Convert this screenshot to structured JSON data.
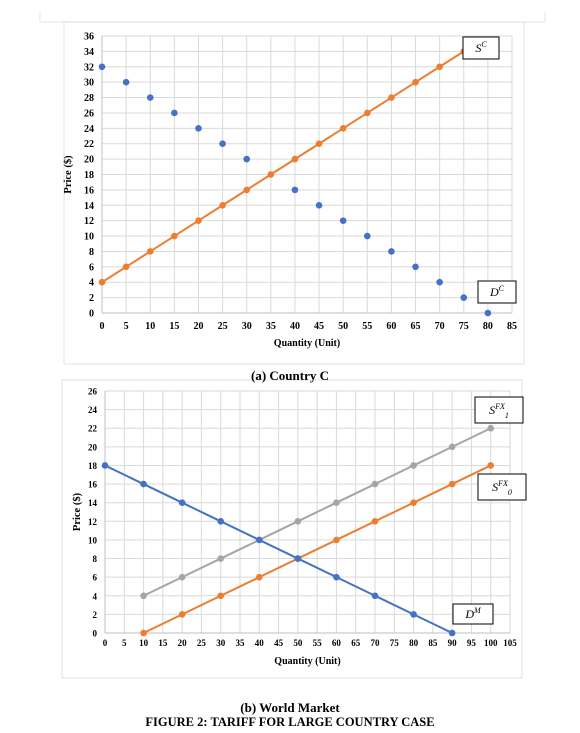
{
  "captions": {
    "panel_a": "(a) Country C",
    "panel_b": "(b) World Market",
    "figure": "FIGURE 2: TARIFF FOR LARGE COUNTRY CASE"
  },
  "colors": {
    "orange": "#ED7D31",
    "blue": "#4472C4",
    "gray": "#A5A5A5",
    "grid": "#D9D9D9"
  },
  "chart_data": [
    {
      "type": "line",
      "xlabel": "Quantity (Unit)",
      "ylabel": "Price ($)",
      "xlim": [
        0,
        85
      ],
      "ylim": [
        0,
        36
      ],
      "xticks": [
        0,
        5,
        10,
        15,
        20,
        25,
        30,
        35,
        40,
        45,
        50,
        55,
        60,
        65,
        70,
        75,
        80,
        85
      ],
      "yticks": [
        0,
        2,
        4,
        6,
        8,
        10,
        12,
        14,
        16,
        18,
        20,
        22,
        24,
        26,
        28,
        30,
        32,
        34,
        36
      ],
      "grid": true,
      "series": [
        {
          "name": "S",
          "sup": "C",
          "color": "#ED7D31",
          "style": "line-markers",
          "label_position": "top-right",
          "x": [
            0,
            5,
            10,
            15,
            20,
            25,
            30,
            35,
            40,
            45,
            50,
            55,
            60,
            65,
            70,
            75
          ],
          "y": [
            4,
            6,
            8,
            10,
            12,
            14,
            16,
            18,
            20,
            22,
            24,
            26,
            28,
            30,
            32,
            34
          ]
        },
        {
          "name": "D",
          "sup": "C",
          "color": "#4472C4",
          "style": "markers",
          "label_position": "bottom-right",
          "x": [
            0,
            5,
            10,
            15,
            20,
            25,
            30,
            40,
            45,
            50,
            55,
            60,
            65,
            70,
            75,
            80
          ],
          "y": [
            32,
            30,
            28,
            26,
            24,
            22,
            20,
            16,
            14,
            12,
            10,
            8,
            6,
            4,
            2,
            0
          ]
        }
      ]
    },
    {
      "type": "line",
      "xlabel": "Quantity (Unit)",
      "ylabel": "Price ($)",
      "xlim": [
        0,
        105
      ],
      "ylim": [
        0,
        26
      ],
      "xticks": [
        0,
        5,
        10,
        15,
        20,
        25,
        30,
        35,
        40,
        45,
        50,
        55,
        60,
        65,
        70,
        75,
        80,
        85,
        90,
        95,
        100,
        105
      ],
      "yticks": [
        0,
        2,
        4,
        6,
        8,
        10,
        12,
        14,
        16,
        18,
        20,
        22,
        24,
        26
      ],
      "grid": true,
      "series": [
        {
          "name": "S",
          "sup": "FX",
          "sub": "1",
          "color": "#A5A5A5",
          "style": "line-markers",
          "label_position": "top-right",
          "x": [
            10,
            20,
            30,
            40,
            50,
            60,
            70,
            80,
            90,
            100
          ],
          "y": [
            4,
            6,
            8,
            10,
            12,
            14,
            16,
            18,
            20,
            22
          ]
        },
        {
          "name": "S",
          "sup": "FX",
          "sub": "0",
          "color": "#ED7D31",
          "style": "line-markers",
          "label_position": "right",
          "x": [
            10,
            20,
            30,
            40,
            50,
            60,
            70,
            80,
            90,
            100
          ],
          "y": [
            0,
            2,
            4,
            6,
            8,
            10,
            12,
            14,
            16,
            18
          ]
        },
        {
          "name": "D",
          "sup": "M",
          "color": "#4472C4",
          "style": "line-markers",
          "label_position": "bottom-right",
          "x": [
            0,
            10,
            20,
            30,
            40,
            50,
            60,
            70,
            80,
            90
          ],
          "y": [
            18,
            16,
            14,
            12,
            10,
            8,
            6,
            4,
            2,
            0
          ]
        }
      ]
    }
  ]
}
